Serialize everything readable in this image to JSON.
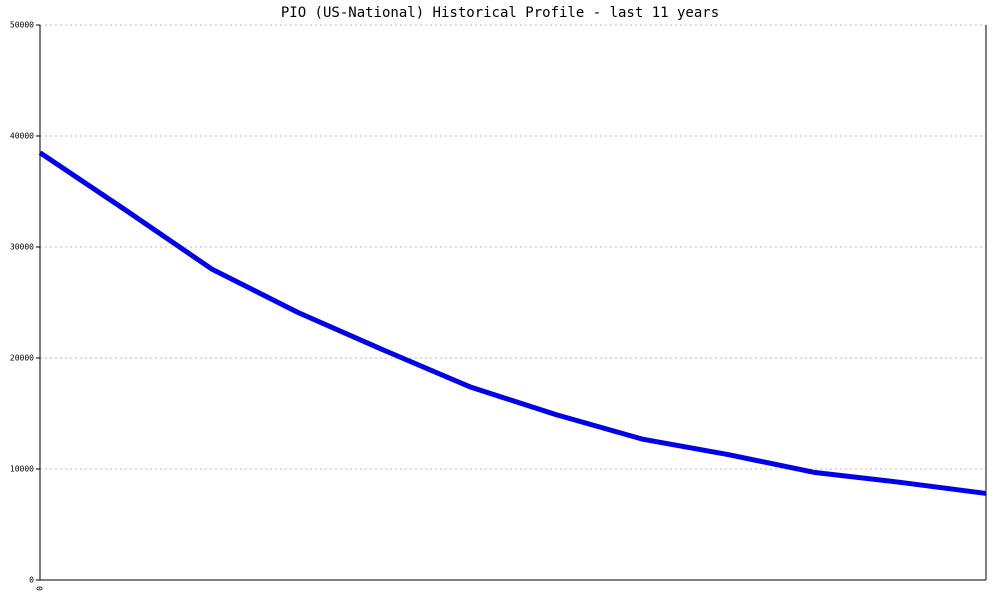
{
  "chart_data": {
    "type": "line",
    "title": "PIO (US-National) Historical Profile - last 11 years",
    "categories": [
      "0",
      null,
      null,
      null,
      null,
      null,
      null,
      null,
      null,
      null,
      null,
      null
    ],
    "series": [
      {
        "name": "PIO",
        "color": "#0000ee",
        "values": [
          38500,
          33300,
          28000,
          24100,
          20700,
          17400,
          14900,
          12700,
          11300,
          9700,
          8800,
          7800
        ]
      }
    ],
    "ylim": [
      0,
      50000
    ],
    "yticks": [
      0,
      10000,
      20000,
      30000,
      40000,
      50000
    ],
    "grid": true
  }
}
